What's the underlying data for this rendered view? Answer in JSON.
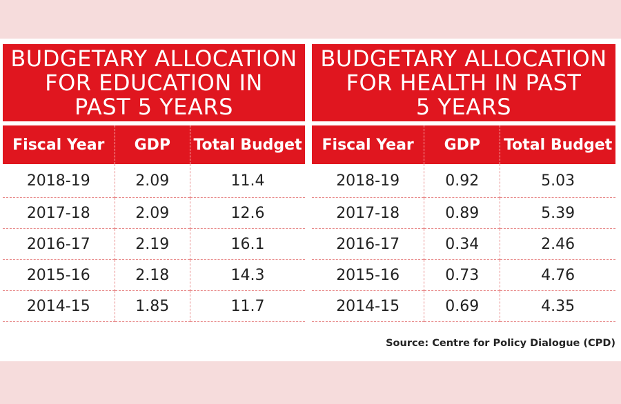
{
  "chart_data": [
    {
      "type": "table",
      "title": "BUDGETARY ALLOCATION\nFOR EDUCATION IN\nPAST 5 YEARS",
      "columns": [
        "Fiscal Year",
        "GDP",
        "Total Budget"
      ],
      "rows": [
        [
          "2018-19",
          "2.09",
          "11.4"
        ],
        [
          "2017-18",
          "2.09",
          "12.6"
        ],
        [
          "2016-17",
          "2.19",
          "16.1"
        ],
        [
          "2015-16",
          "2.18",
          "14.3"
        ],
        [
          "2014-15",
          "1.85",
          "11.7"
        ]
      ]
    },
    {
      "type": "table",
      "title": "BUDGETARY ALLOCATION\nFOR HEALTH IN PAST\n5 YEARS",
      "columns": [
        "Fiscal Year",
        "GDP",
        "Total Budget"
      ],
      "rows": [
        [
          "2018-19",
          "0.92",
          "5.03"
        ],
        [
          "2017-18",
          "0.89",
          "5.39"
        ],
        [
          "2016-17",
          "0.34",
          "2.46"
        ],
        [
          "2015-16",
          "0.73",
          "4.76"
        ],
        [
          "2014-15",
          "0.69",
          "4.35"
        ]
      ]
    }
  ],
  "source": "Source: Centre for Policy Dialogue (CPD)",
  "colors": {
    "header_red": "#e0161f",
    "background": "#f6dcdc"
  }
}
